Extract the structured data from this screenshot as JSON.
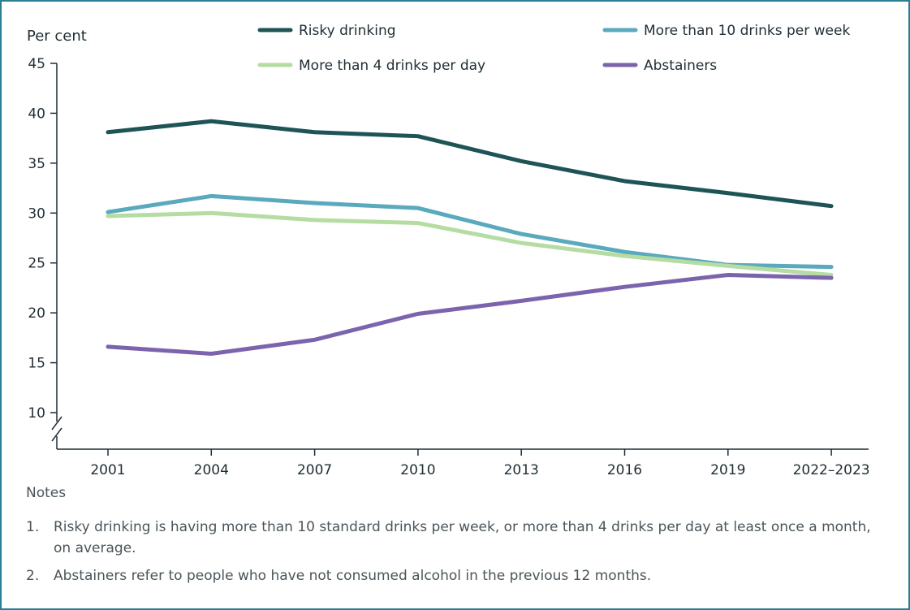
{
  "chart_data": {
    "type": "line",
    "ylabel": "Per cent",
    "ylim": [
      10,
      45
    ],
    "yticks": [
      45,
      40,
      35,
      30,
      25,
      20,
      15,
      10
    ],
    "categories": [
      "2001",
      "2004",
      "2007",
      "2010",
      "2013",
      "2016",
      "2019",
      "2022–2023"
    ],
    "axis_break": true,
    "grid": false,
    "legend_position": "top",
    "series": [
      {
        "name": "Risky drinking",
        "color": "#1e5456",
        "values": [
          38.1,
          39.2,
          38.1,
          37.7,
          35.2,
          33.2,
          32.0,
          30.7
        ]
      },
      {
        "name": "More than 10 drinks per week",
        "color": "#5aa9bd",
        "values": [
          30.1,
          31.7,
          31.0,
          30.5,
          27.9,
          26.1,
          24.8,
          24.6
        ]
      },
      {
        "name": "More than 4 drinks per day",
        "color": "#b5dca2",
        "values": [
          29.7,
          30.0,
          29.3,
          29.0,
          27.0,
          25.7,
          24.7,
          23.8
        ]
      },
      {
        "name": "Abstainers",
        "color": "#7b64ad",
        "values": [
          16.6,
          15.9,
          17.3,
          19.9,
          21.2,
          22.6,
          23.8,
          23.5
        ]
      }
    ]
  },
  "notes": {
    "title": "Notes",
    "items": [
      {
        "num": "1.",
        "text": "Risky drinking is having more than 10 standard drinks per week, or more than 4 drinks per day at least once a month, on average."
      },
      {
        "num": "2.",
        "text": "Abstainers refer to people who have not consumed alcohol in the previous 12 months."
      }
    ]
  }
}
